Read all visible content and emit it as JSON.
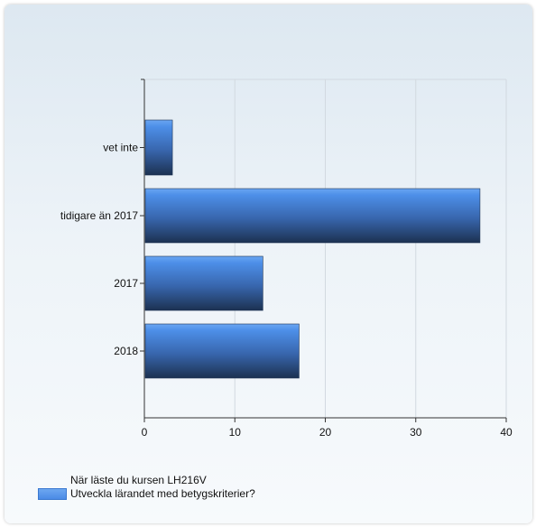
{
  "chart_data": {
    "type": "bar",
    "orientation": "horizontal",
    "categories": [
      "vet inte",
      "tidigare än 2017",
      "2017",
      "2018"
    ],
    "series": [
      {
        "name": "När läste du kursen LH216V Utveckla lärandet med betygskriterier?",
        "values": [
          3,
          37,
          13,
          17
        ]
      }
    ],
    "xlim": [
      0,
      40
    ],
    "x_ticks": [
      "0",
      "10",
      "20",
      "30",
      "40"
    ],
    "grid": true,
    "legend": "bottom-left",
    "colors": {
      "bar_top": "#5a9aee",
      "bar_bottom": "#1f3556",
      "legend_swatch": "#4a8ae6"
    }
  },
  "legend": {
    "lines": [
      "När läste du kursen LH216V",
      "Utveckla lärandet med betygskriterier?"
    ]
  }
}
